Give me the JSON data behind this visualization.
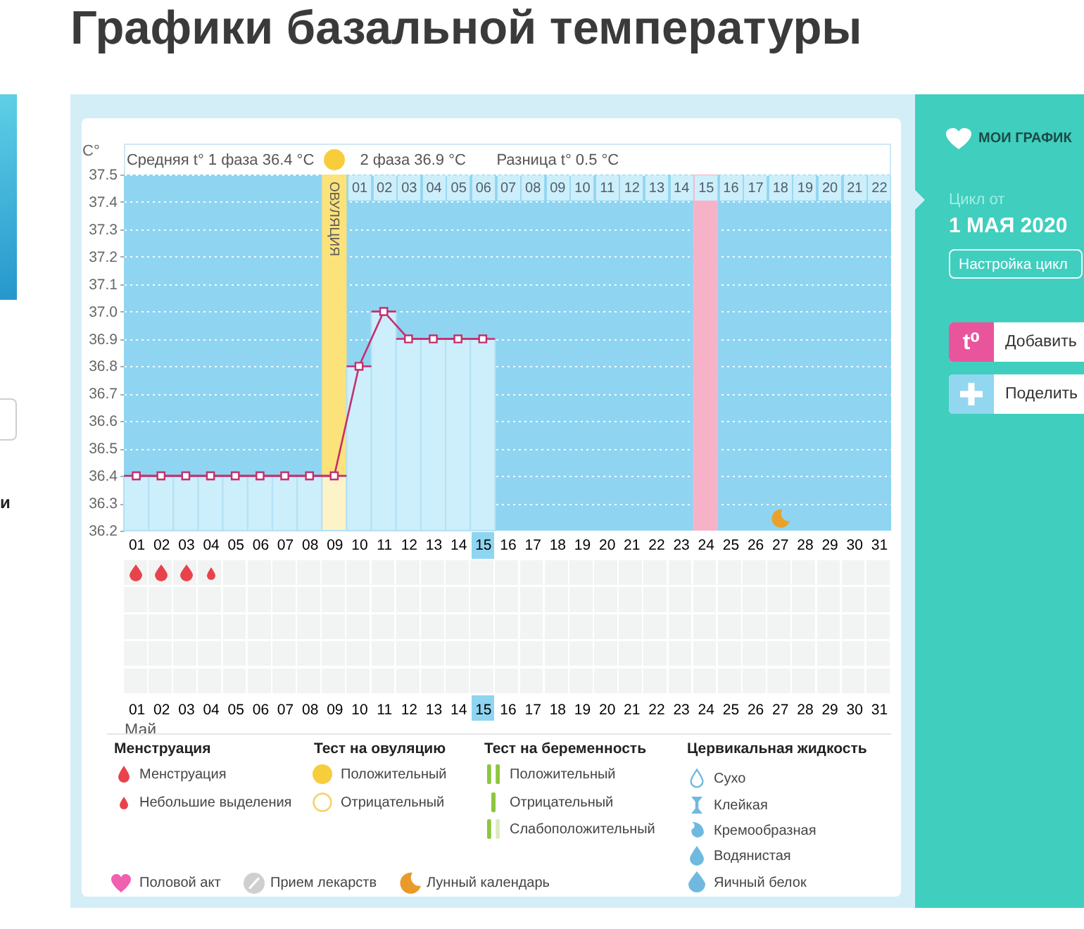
{
  "chart_data": [
    {
      "type": "line",
      "title": "Графики базальной температуры",
      "ylabel": "C°",
      "xlabel": "Май",
      "categories": [
        "01",
        "02",
        "03",
        "04",
        "05",
        "06",
        "07",
        "08",
        "09",
        "10",
        "11",
        "12",
        "13",
        "14",
        "15",
        "16",
        "17",
        "18",
        "19",
        "20",
        "21",
        "22",
        "23",
        "24",
        "25",
        "26",
        "27",
        "28",
        "29",
        "30",
        "31"
      ],
      "series": [
        {
          "type": "bar",
          "colors": [
            "#cdeefb",
            "#cdeefb",
            "#cdeefb",
            "#cdeefb",
            "#cdeefb",
            "#cdeefb",
            "#cdeefb",
            "#cdeefb",
            "#fdf3c9",
            "#cdeefb",
            "#cdeefb",
            "#cdeefb",
            "#cdeefb",
            "#cdeefb",
            "#cdeefb",
            null,
            null,
            null,
            null,
            null,
            null,
            null,
            null,
            null,
            null,
            null,
            null,
            null,
            null,
            null,
            null
          ],
          "values": [
            36.4,
            36.4,
            36.4,
            36.4,
            36.4,
            36.4,
            36.4,
            36.4,
            36.4,
            36.8,
            37.0,
            36.9,
            36.9,
            36.9,
            36.9,
            null,
            null,
            null,
            null,
            null,
            null,
            null,
            null,
            null,
            null,
            null,
            null,
            null,
            null,
            null,
            null
          ]
        },
        {
          "color": "#c2306e",
          "values": [
            36.4,
            36.4,
            36.4,
            36.4,
            36.4,
            36.4,
            36.4,
            36.4,
            36.4,
            36.8,
            37.0,
            36.9,
            36.9,
            36.9,
            36.9,
            null,
            null,
            null,
            null,
            null,
            null,
            null,
            null,
            null,
            null,
            null,
            null,
            null,
            null,
            null,
            null
          ]
        }
      ],
      "ylim": [
        36.2,
        37.5
      ],
      "yticks": [
        36.2,
        36.3,
        36.4,
        36.5,
        36.6,
        36.7,
        36.8,
        36.9,
        {
          "value": 37,
          "label": "37.0"
        },
        37.1,
        37.2,
        37.3,
        37.4,
        37.5
      ],
      "x2lim": [
        -8.5,
        22.5
      ],
      "x2ticks": [
        {
          "value": 1,
          "label": "01"
        },
        {
          "value": 2,
          "label": "02"
        },
        {
          "value": 3,
          "label": "03"
        },
        {
          "value": 4,
          "label": "04"
        },
        {
          "value": 5,
          "label": "05"
        },
        {
          "value": 6,
          "label": "06"
        },
        {
          "value": 7,
          "label": "07"
        },
        {
          "value": 8,
          "label": "08"
        },
        {
          "value": 9,
          "label": "09"
        },
        10,
        11,
        12,
        13,
        14,
        15,
        16,
        17,
        18,
        19,
        20,
        21,
        22
      ],
      "bands": [
        {
          "axis": "x",
          "from": "09",
          "to": "09",
          "label": "ОВУЛЯЦИЯ",
          "color": "#fbe27b"
        },
        {
          "axis": "x",
          "from": "24",
          "to": "24",
          "color": "#f6b3c8"
        }
      ],
      "annotations": [
        "Средняя t° 1 фаза 36.4 °C",
        "2 фаза 36.9 °C",
        "Разница t° 0.5 °C"
      ],
      "grid": "y",
      "marker": "square"
    },
    {
      "type": "other",
      "annotations": [
        "МОИ ГРАФИК",
        "Цикл от",
        "1 МАЯ 2020",
        "Настройка цикл",
        "t⁰",
        "Добавить",
        "Поделить"
      ]
    },
    {
      "type": "other",
      "annotations": [
        "Менструация",
        "Менструация",
        "Небольшие выделения",
        "Тест на овуляцию",
        "Положительный",
        "Отрицательный",
        "Тест на беременность",
        "Положительный",
        "Отрицательный",
        "Слабоположительный",
        "Цервикальная жидкость",
        "Сухо",
        "Клейкая",
        "Кремообразная",
        "Водянистая",
        "Яичный белок",
        "Половой акт",
        "Прием лекарств",
        "Лунный календарь"
      ]
    },
    {
      "type": "other",
      "annotations": [
        "и"
      ]
    }
  ]
}
